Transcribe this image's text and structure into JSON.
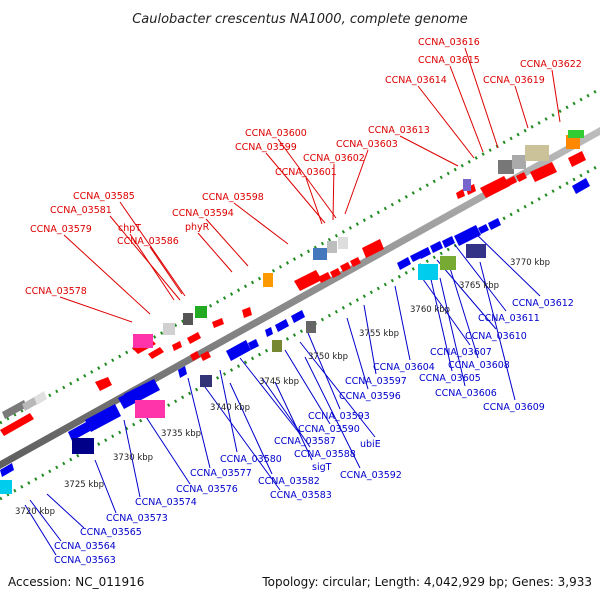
{
  "title": "Caulobacter crescentus NA1000, complete genome",
  "footer": {
    "accession": "Accession: NC_011916",
    "topology": "Topology: circular; Length: 4,042,929 bp; Genes: 3,933"
  },
  "colors": {
    "top_label": "#dd0000",
    "bottom_label": "#0000cc",
    "forward_gene": "#ff0000",
    "reverse_gene": "#0000ee",
    "genome_line": "#8c8c8c",
    "dotted_track": "#228b22"
  },
  "kbp_ticks": [
    "3720 kbp",
    "3725 kbp",
    "3730 kbp",
    "3735 kbp",
    "3740 kbp",
    "3745 kbp",
    "3750 kbp",
    "3755 kbp",
    "3760 kbp",
    "3765 kbp",
    "3770 kbp"
  ],
  "top_labels": [
    "CCNA_03616",
    "CCNA_03615",
    "CCNA_03622",
    "CCNA_03614",
    "CCNA_03619",
    "CCNA_03613",
    "CCNA_03600",
    "CCNA_03599",
    "CCNA_03603",
    "CCNA_03602",
    "CCNA_03601",
    "CCNA_03585",
    "CCNA_03598",
    "CCNA_03581",
    "CCNA_03594",
    "CCNA_03579",
    "chpT",
    "phyR",
    "CCNA_03586",
    "CCNA_03578"
  ],
  "bottom_labels": [
    "CCNA_03612",
    "CCNA_03611",
    "CCNA_03610",
    "CCNA_03607",
    "CCNA_03608",
    "CCNA_03604",
    "CCNA_03597",
    "CCNA_03605",
    "CCNA_03606",
    "CCNA_03609",
    "CCNA_03596",
    "CCNA_03593",
    "CCNA_03590",
    "ubiE",
    "CCNA_03587",
    "CCNA_03588",
    "CCNA_03580",
    "sigT",
    "CCNA_03592",
    "CCNA_03577",
    "CCNA_03582",
    "CCNA_03576",
    "CCNA_03583",
    "CCNA_03574",
    "CCNA_03573",
    "CCNA_03565",
    "CCNA_03564",
    "CCNA_03563"
  ]
}
